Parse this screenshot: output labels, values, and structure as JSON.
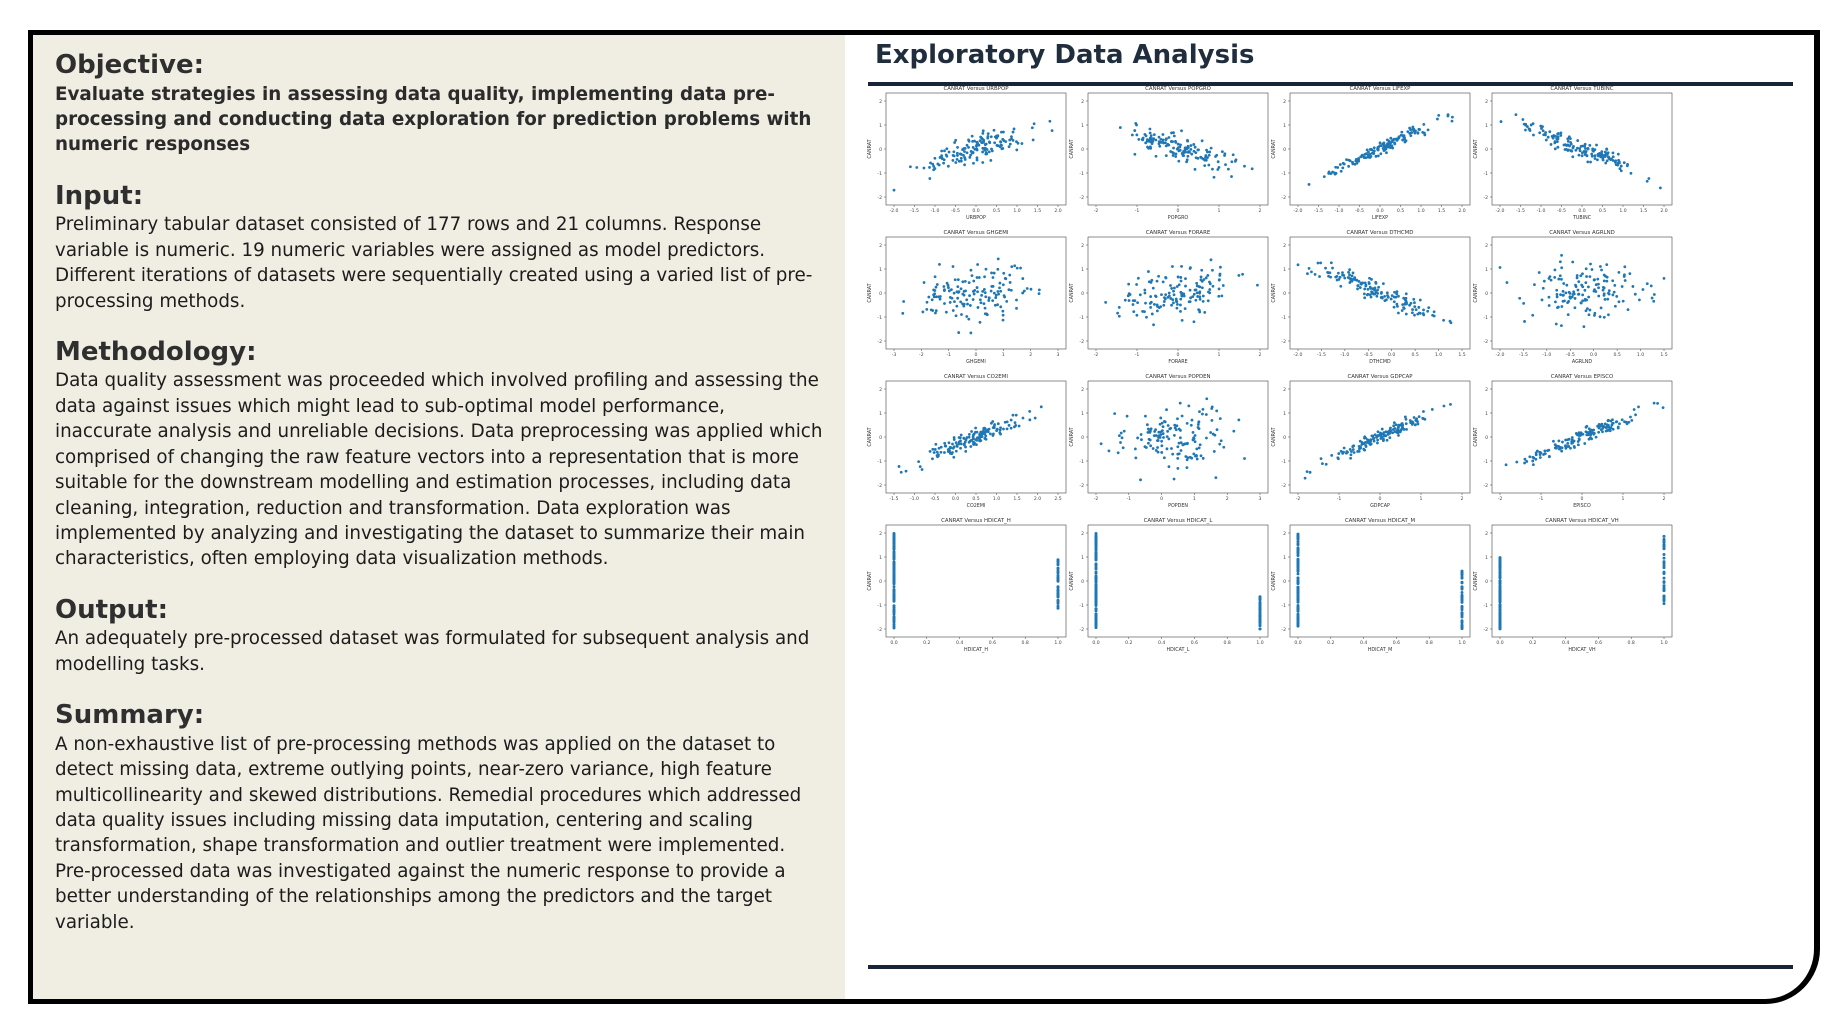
{
  "left": {
    "sections": [
      {
        "title": "Objective:",
        "body": "Evaluate strategies in assessing data quality, implementing data pre-processing and conducting data exploration for prediction problems with numeric responses",
        "bold": true
      },
      {
        "title": "Input:",
        "body": "Preliminary tabular dataset consisted of 177 rows and 21 columns. Response variable is numeric. 19 numeric variables were assigned as model predictors. Different iterations of datasets were sequentially created using a varied list of pre-processing methods.",
        "bold": false
      },
      {
        "title": "Methodology:",
        "body": "Data quality assessment was proceeded which involved profiling and assessing the data against issues which might lead to sub-optimal model performance, inaccurate analysis and unreliable decisions. Data preprocessing was applied which comprised of changing the raw feature vectors into a representation that is more suitable for the downstream modelling and estimation processes, including data cleaning, integration, reduction and transformation. Data exploration was implemented by analyzing and investigating the dataset to summarize their main characteristics, often employing data visualization methods.",
        "bold": false
      },
      {
        "title": "Output:",
        "body": "An adequately pre-processed dataset was formulated for subsequent analysis and modelling tasks.",
        "bold": false
      },
      {
        "title": "Summary:",
        "body": "A non-exhaustive list of pre-processing methods was applied on the dataset to detect missing data, extreme outlying points, near-zero variance, high feature multicollinearity and skewed distributions. Remedial procedures which addressed data quality issues including missing data imputation, centering and scaling transformation, shape transformation and outlier treatment were implemented. Pre-processed data was investigated against the numeric response to provide a better understanding of the relationships among the predictors and the target variable.",
        "bold": false
      }
    ]
  },
  "right": {
    "title": "Exploratory Data Analysis"
  },
  "colors": {
    "left_bg": "#f0ede2",
    "rule": "#17243a",
    "point": "#1f77b4"
  },
  "chart_data": [
    {
      "type": "scatter",
      "title": "CANRAT Versus URBPOP",
      "xlabel": "URBPOP",
      "ylabel": "CANRAT",
      "xticks": [
        "-2.0",
        "-1.5",
        "-1.0",
        "-0.5",
        "0.0",
        "0.5",
        "1.0",
        "1.5",
        "2.0"
      ],
      "yticks": [
        "2",
        "1",
        "0",
        "-1",
        "-2"
      ],
      "trend": 0.55,
      "n": 150,
      "seed": 11
    },
    {
      "type": "scatter",
      "title": "CANRAT Versus POPGRO",
      "xlabel": "POPGRO",
      "ylabel": "CANRAT",
      "xticks": [
        "-2",
        "-1",
        "0",
        "1",
        "2"
      ],
      "yticks": [
        "2",
        "1",
        "0",
        "-1",
        "-2"
      ],
      "trend": -0.55,
      "n": 150,
      "seed": 12
    },
    {
      "type": "scatter",
      "title": "CANRAT Versus LIFEXP",
      "xlabel": "LIFEXP",
      "ylabel": "CANRAT",
      "xticks": [
        "-2.0",
        "-1.5",
        "-1.0",
        "-0.5",
        "0.0",
        "0.5",
        "1.0",
        "1.5",
        "2.0"
      ],
      "yticks": [
        "2",
        "1",
        "0",
        "-1",
        "-2"
      ],
      "trend": 0.8,
      "n": 150,
      "seed": 13
    },
    {
      "type": "scatter",
      "title": "CANRAT Versus TUBINC",
      "xlabel": "TUBINC",
      "ylabel": "CANRAT",
      "xticks": [
        "-2.0",
        "-1.5",
        "-1.0",
        "-0.5",
        "0.0",
        "0.5",
        "1.0",
        "1.5",
        "2.0"
      ],
      "yticks": [
        "2",
        "1",
        "0",
        "-1",
        "-2"
      ],
      "trend": -0.7,
      "n": 150,
      "seed": 14
    },
    {
      "type": "scatter",
      "title": "CANRAT Versus GHGEMI",
      "xlabel": "GHGEMI",
      "ylabel": "CANRAT",
      "xticks": [
        "-3",
        "-2",
        "-1",
        "0",
        "1",
        "2",
        "3"
      ],
      "yticks": [
        "2",
        "1",
        "0",
        "-1",
        "-2"
      ],
      "trend": 0.1,
      "n": 150,
      "seed": 15
    },
    {
      "type": "scatter",
      "title": "CANRAT Versus FORARE",
      "xlabel": "FORARE",
      "ylabel": "CANRAT",
      "xticks": [
        "-2",
        "-1",
        "0",
        "1",
        "2"
      ],
      "yticks": [
        "2",
        "1",
        "0",
        "-1",
        "-2"
      ],
      "trend": 0.2,
      "n": 150,
      "seed": 16
    },
    {
      "type": "scatter",
      "title": "CANRAT Versus DTHCMD",
      "xlabel": "DTHCMD",
      "ylabel": "CANRAT",
      "xticks": [
        "-2.0",
        "-1.5",
        "-1.0",
        "-0.5",
        "0.0",
        "0.5",
        "1.0",
        "1.5"
      ],
      "yticks": [
        "2",
        "1",
        "0",
        "-1",
        "-2"
      ],
      "trend": -0.7,
      "n": 150,
      "seed": 17
    },
    {
      "type": "scatter",
      "title": "CANRAT Versus AGRLND",
      "xlabel": "AGRLND",
      "ylabel": "CANRAT",
      "xticks": [
        "-2.0",
        "-1.5",
        "-1.0",
        "-0.5",
        "0.0",
        "0.5",
        "1.0",
        "1.5"
      ],
      "yticks": [
        "2",
        "1",
        "0",
        "-1",
        "-2"
      ],
      "trend": 0.05,
      "n": 150,
      "seed": 18
    },
    {
      "type": "scatter",
      "title": "CANRAT Versus CO2EMI",
      "xlabel": "CO2EMI",
      "ylabel": "CANRAT",
      "xticks": [
        "-1.5",
        "-1.0",
        "-0.5",
        "0.0",
        "0.5",
        "1.0",
        "1.5",
        "2.0",
        "2.5"
      ],
      "yticks": [
        "2",
        "1",
        "0",
        "-1",
        "-2"
      ],
      "trend": 0.7,
      "n": 150,
      "seed": 19
    },
    {
      "type": "scatter",
      "title": "CANRAT Versus POPDEN",
      "xlabel": "POPDEN",
      "ylabel": "CANRAT",
      "xticks": [
        "-2",
        "-1",
        "0",
        "1",
        "2",
        "3"
      ],
      "yticks": [
        "2",
        "1",
        "0",
        "-1",
        "-2"
      ],
      "trend": 0.0,
      "n": 150,
      "seed": 20
    },
    {
      "type": "scatter",
      "title": "CANRAT Versus GDPCAP",
      "xlabel": "GDPCAP",
      "ylabel": "CANRAT",
      "xticks": [
        "-2",
        "-1",
        "0",
        "1",
        "2"
      ],
      "yticks": [
        "2",
        "1",
        "0",
        "-1",
        "-2"
      ],
      "trend": 0.8,
      "n": 150,
      "seed": 21
    },
    {
      "type": "scatter",
      "title": "CANRAT Versus EPISCO",
      "xlabel": "EPISCO",
      "ylabel": "CANRAT",
      "xticks": [
        "-2",
        "-1",
        "0",
        "1",
        "2"
      ],
      "yticks": [
        "2",
        "1",
        "0",
        "-1",
        "-2"
      ],
      "trend": 0.75,
      "n": 150,
      "seed": 22
    },
    {
      "type": "scatter",
      "binary": true,
      "title": "CANRAT Versus HDICAT_H",
      "xlabel": "HDICAT_H",
      "ylabel": "CANRAT",
      "xticks": [
        "0.0",
        "0.2",
        "0.4",
        "0.6",
        "0.8",
        "1.0"
      ],
      "yticks": [
        "2",
        "1",
        "0",
        "-1",
        "-2"
      ],
      "x0range": [
        -2,
        2
      ],
      "x1range": [
        -1.2,
        1.0
      ],
      "seed": 23
    },
    {
      "type": "scatter",
      "binary": true,
      "title": "CANRAT Versus HDICAT_L",
      "xlabel": "HDICAT_L",
      "ylabel": "CANRAT",
      "xticks": [
        "0.0",
        "0.2",
        "0.4",
        "0.6",
        "0.8",
        "1.0"
      ],
      "yticks": [
        "2",
        "1",
        "0",
        "-1",
        "-2"
      ],
      "x0range": [
        -2,
        2
      ],
      "x1range": [
        -2,
        -0.6
      ],
      "seed": 24
    },
    {
      "type": "scatter",
      "binary": true,
      "title": "CANRAT Versus HDICAT_M",
      "xlabel": "HDICAT_M",
      "ylabel": "CANRAT",
      "xticks": [
        "0.0",
        "0.2",
        "0.4",
        "0.6",
        "0.8",
        "1.0"
      ],
      "yticks": [
        "2",
        "1",
        "0",
        "-1",
        "-2"
      ],
      "x0range": [
        -2,
        2
      ],
      "x1range": [
        -2,
        0.5
      ],
      "seed": 25
    },
    {
      "type": "scatter",
      "binary": true,
      "title": "CANRAT Versus HDICAT_VH",
      "xlabel": "HDICAT_VH",
      "ylabel": "CANRAT",
      "xticks": [
        "0.0",
        "0.2",
        "0.4",
        "0.6",
        "0.8",
        "1.0"
      ],
      "yticks": [
        "2",
        "1",
        "0",
        "-1",
        "-2"
      ],
      "x0range": [
        -2,
        1
      ],
      "x1range": [
        -1,
        2
      ],
      "seed": 26
    }
  ]
}
